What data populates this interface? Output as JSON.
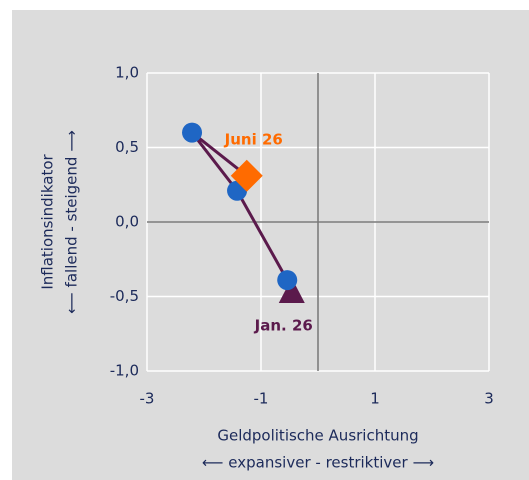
{
  "chart_data": {
    "type": "line",
    "x": [
      -0.46,
      -0.54,
      -1.42,
      -2.21,
      -1.25
    ],
    "values": [
      -0.47,
      -0.39,
      0.21,
      0.6,
      0.31
    ],
    "markers": [
      "triangle",
      "circle",
      "circle",
      "circle",
      "diamond"
    ],
    "marker_colors": [
      "#5b1a4c",
      "#1f66c4",
      "#1f66c4",
      "#1f66c4",
      "#ff6b00"
    ],
    "line_color": "#5b1a4c",
    "xlim": [
      -3,
      3
    ],
    "ylim": [
      -1,
      1
    ],
    "xticks": [
      -3,
      -1,
      1,
      3
    ],
    "yticks": [
      {
        "value": -1,
        "label": "-1,0"
      },
      {
        "value": -0.5,
        "label": "-0,5"
      },
      {
        "value": 0,
        "label": "0,0"
      },
      {
        "value": 0.5,
        "label": "0,5"
      },
      {
        "value": 1,
        "label": "1,0"
      }
    ],
    "grid": true,
    "y_label": [
      "Inflationsindikator",
      "⟵ fallend - steigend ⟶"
    ],
    "x_label": [
      "Geldpolitische Ausrichtung",
      "⟵ expansiver - restriktiver ⟶"
    ],
    "annotations": [
      {
        "text": "Jan. 26",
        "point": 0,
        "color": "#5b1a4c"
      },
      {
        "text": "Juni 26",
        "point": 4,
        "color": "#ff6b00"
      }
    ]
  }
}
